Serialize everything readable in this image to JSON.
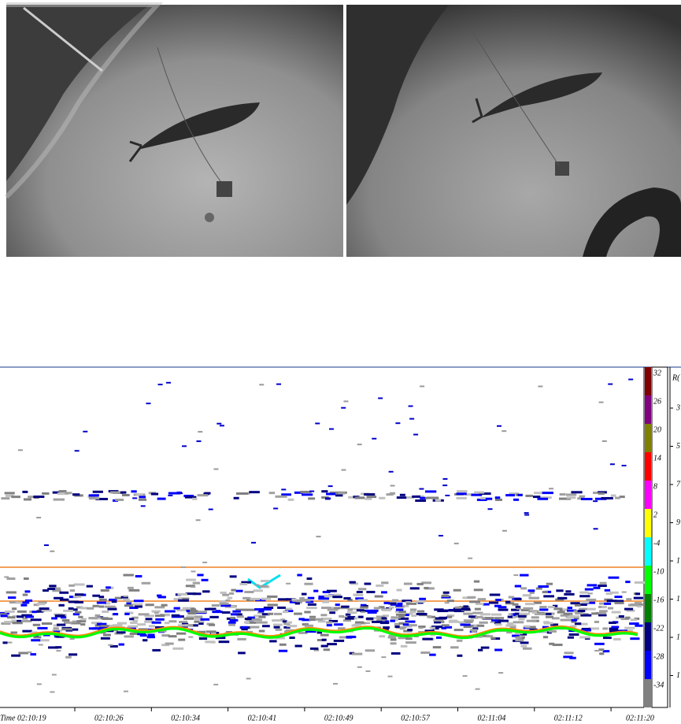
{
  "echogram": {
    "time_labels": [
      "Time 02:10:19",
      "02:10:26",
      "02:10:34",
      "02:10:41",
      "02:10:49",
      "02:10:57",
      "02:11:04",
      "02:11:12",
      "02:11:20"
    ],
    "color_scale": {
      "labels": [
        32,
        26,
        20,
        14,
        8,
        2,
        -4,
        -10,
        -16,
        -22,
        -28,
        -34
      ],
      "colors": [
        "#800000",
        "#800080",
        "#808000",
        "#ff0000",
        "#ff00ff",
        "#ffff00",
        "#00ffff",
        "#00ff00",
        "#008000",
        "#000080",
        "#0000ff",
        "#808080"
      ]
    },
    "range_axis": {
      "title": "R(",
      "labels": [
        "3",
        "5",
        "7",
        "9",
        "1",
        "1",
        "1",
        "1"
      ]
    }
  }
}
